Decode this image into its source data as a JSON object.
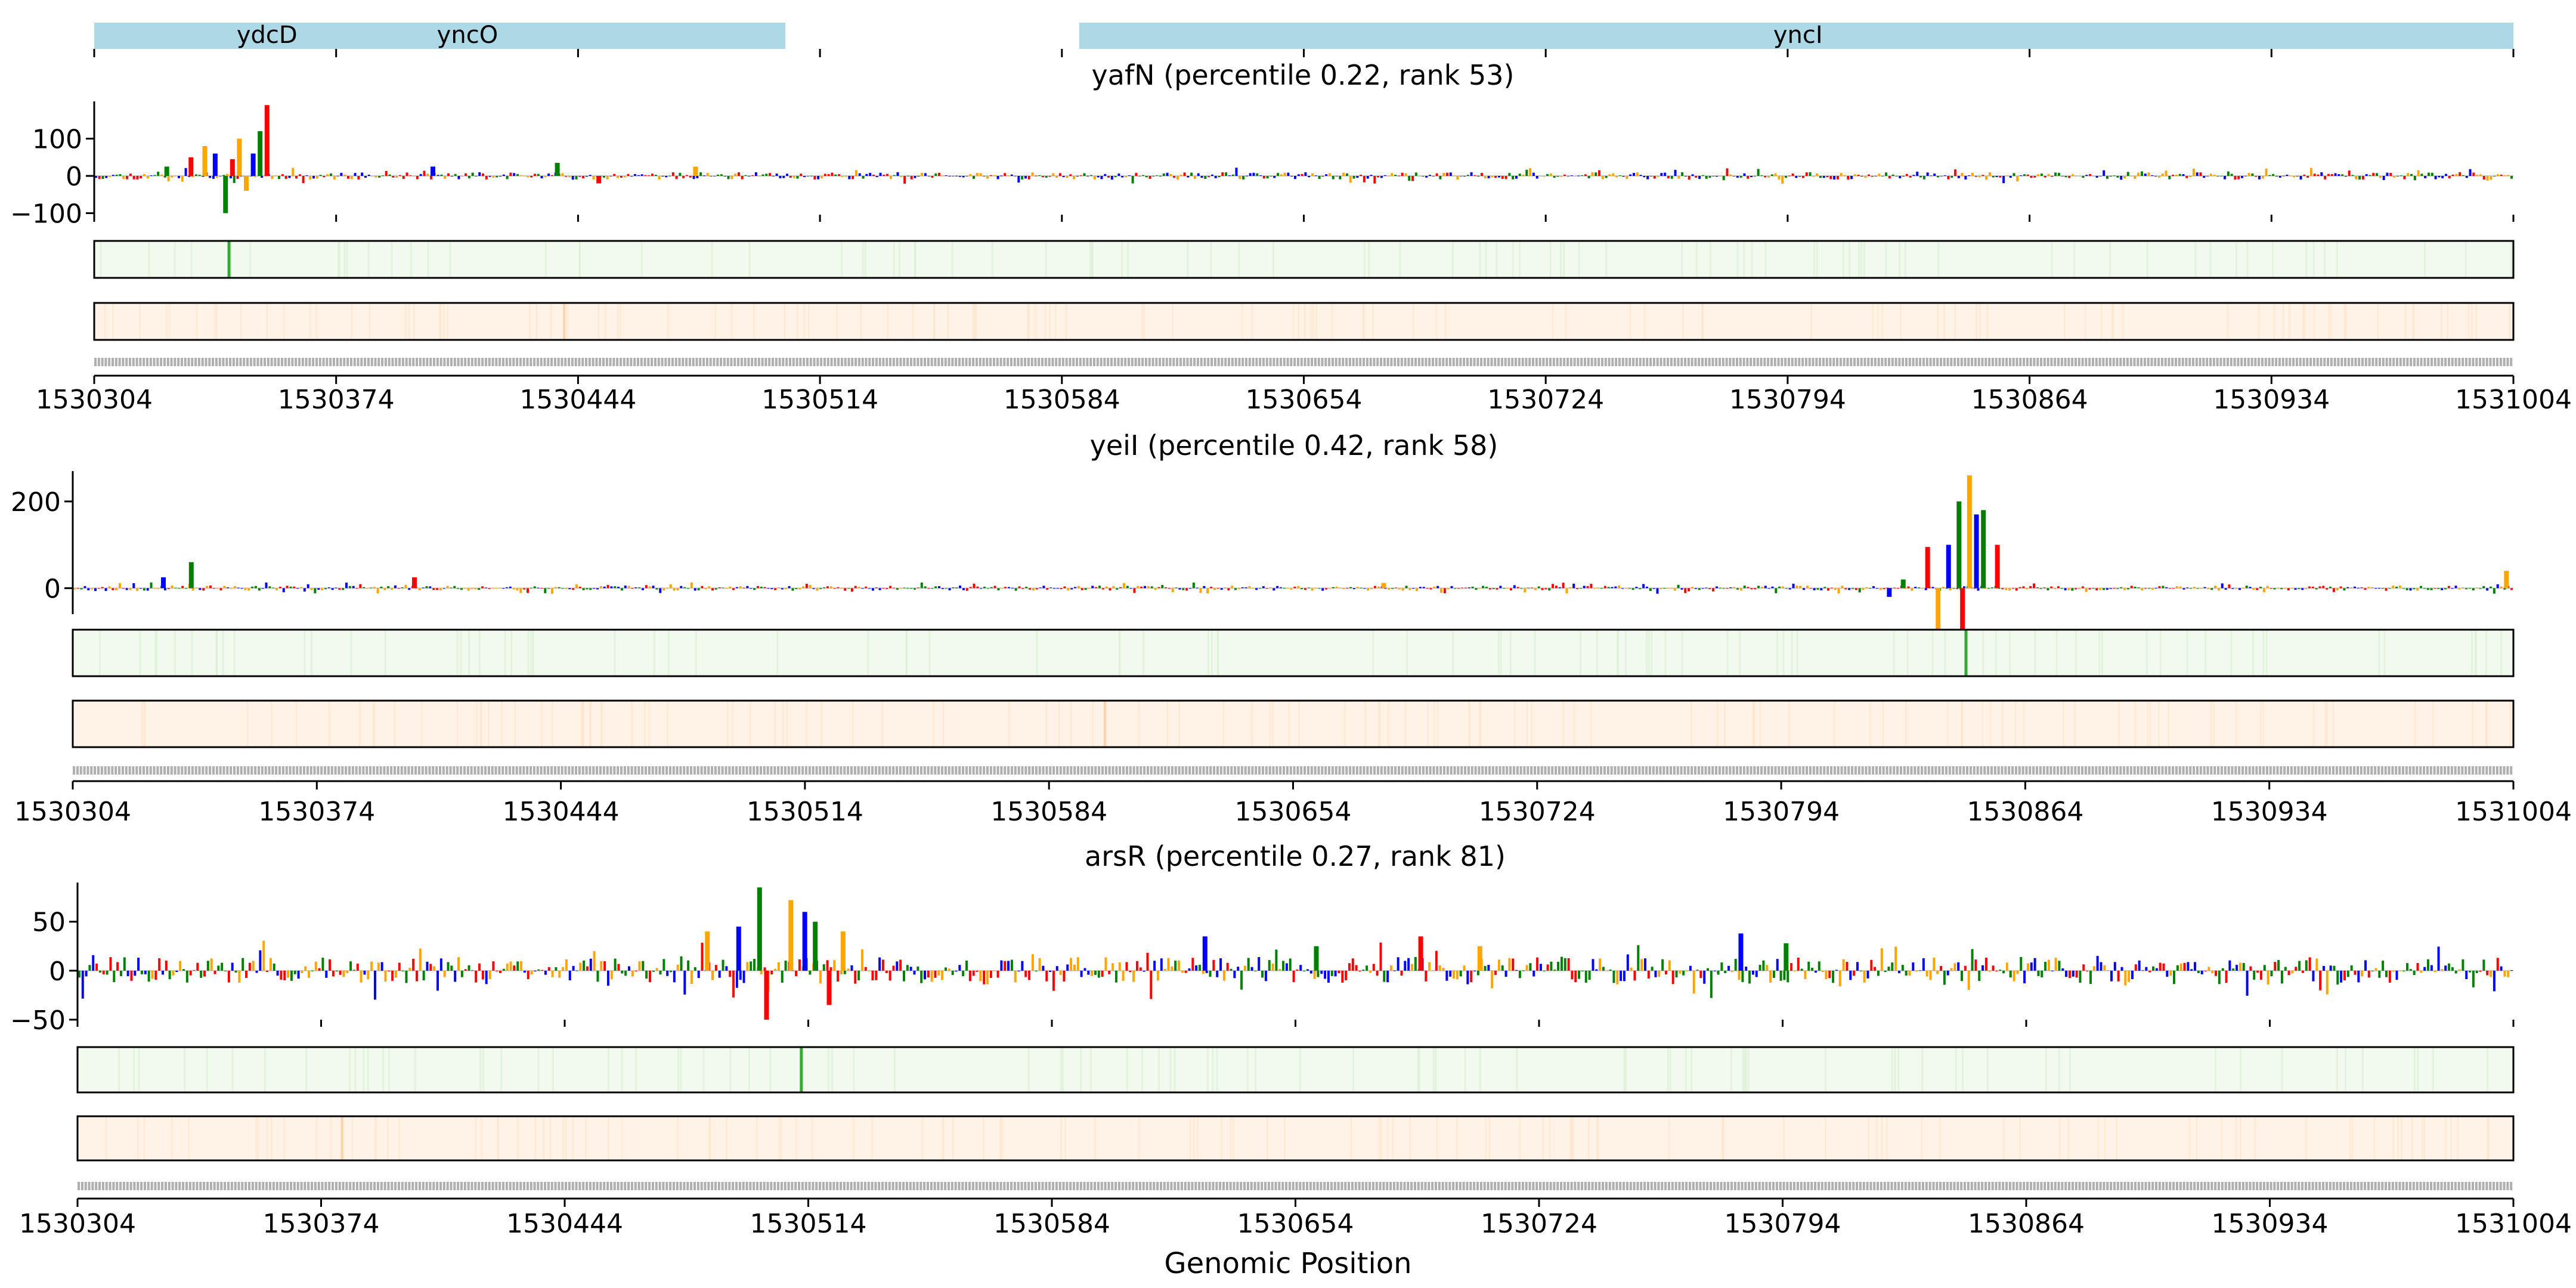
{
  "figure": {
    "xlabel": "Genomic Position",
    "x_tick_labels": [
      "1530304",
      "1530374",
      "1530444",
      "1530514",
      "1530584",
      "1530654",
      "1530724",
      "1530794",
      "1530864",
      "1530934",
      "1531004"
    ]
  },
  "chart_data": [
    {
      "type": "area",
      "name": "gene-annotation-track",
      "genes": [
        {
          "label": "ydcD",
          "x_start": 1530304,
          "x_end": 1530504,
          "color": "#add8e6"
        },
        {
          "label": "yncO",
          "x_start": 1530304,
          "x_end": 1530504,
          "color": "#add8e6"
        },
        {
          "label": "yncI",
          "x_start": 1530589,
          "x_end": 1531004,
          "color": "#add8e6"
        }
      ],
      "gene_label_x": {
        "ydcD": 1530354,
        "yncO": 1530412,
        "yncI": 1530797
      },
      "xlim": [
        1530304,
        1531004
      ]
    },
    {
      "type": "bar",
      "title": "yafN (percentile 0.22, rank 53)",
      "xlim": [
        1530304,
        1531004
      ],
      "ylim": [
        -120,
        200
      ],
      "y_ticks": [
        100,
        0,
        -100
      ],
      "y_tick_labels": [
        "100",
        "0",
        "−100"
      ],
      "peaks": [
        {
          "x": 1530325,
          "y": 25
        },
        {
          "x": 1530332,
          "y": 50
        },
        {
          "x": 1530336,
          "y": 80
        },
        {
          "x": 1530339,
          "y": 60
        },
        {
          "x": 1530342,
          "y": -100
        },
        {
          "x": 1530344,
          "y": 45
        },
        {
          "x": 1530346,
          "y": 100
        },
        {
          "x": 1530350,
          "y": 60
        },
        {
          "x": 1530352,
          "y": 120
        },
        {
          "x": 1530354,
          "y": 190
        },
        {
          "x": 1530348,
          "y": -40
        },
        {
          "x": 1530402,
          "y": 25
        },
        {
          "x": 1530438,
          "y": 35
        },
        {
          "x": 1530450,
          "y": -20
        },
        {
          "x": 1530478,
          "y": 25
        }
      ],
      "noise_amplitude": 10,
      "heatmap_green_peak_x": 1530343,
      "heatmap_orange_peak_x": 1530440
    },
    {
      "type": "bar",
      "title": "yeiI (percentile 0.42, rank 58)",
      "xlim": [
        1530304,
        1531004
      ],
      "ylim": [
        -60,
        270
      ],
      "y_ticks": [
        200,
        0
      ],
      "y_tick_labels": [
        "200",
        "0"
      ],
      "peaks": [
        {
          "x": 1530330,
          "y": 25
        },
        {
          "x": 1530338,
          "y": 60
        },
        {
          "x": 1530402,
          "y": 25
        },
        {
          "x": 1530680,
          "y": 12
        },
        {
          "x": 1530825,
          "y": -20
        },
        {
          "x": 1530829,
          "y": 20
        },
        {
          "x": 1530836,
          "y": 95
        },
        {
          "x": 1530839,
          "y": -110
        },
        {
          "x": 1530842,
          "y": 100
        },
        {
          "x": 1530845,
          "y": 200
        },
        {
          "x": 1530846,
          "y": -130
        },
        {
          "x": 1530848,
          "y": 260
        },
        {
          "x": 1530850,
          "y": 170
        },
        {
          "x": 1530852,
          "y": 180
        },
        {
          "x": 1530856,
          "y": 100
        },
        {
          "x": 1531002,
          "y": 40
        }
      ],
      "noise_amplitude": 6,
      "heatmap_green_peak_x": 1530847,
      "heatmap_orange_peak_x": 1530600
    },
    {
      "type": "bar",
      "title": "arsR (percentile 0.27, rank 81)",
      "xlim": [
        1530304,
        1531004
      ],
      "ylim": [
        -50,
        90
      ],
      "y_ticks": [
        50,
        0,
        -50
      ],
      "y_tick_labels": [
        "50",
        "0",
        "−50"
      ],
      "peaks": [
        {
          "x": 1530485,
          "y": 40
        },
        {
          "x": 1530494,
          "y": 45
        },
        {
          "x": 1530500,
          "y": 85
        },
        {
          "x": 1530502,
          "y": -50
        },
        {
          "x": 1530509,
          "y": 72
        },
        {
          "x": 1530513,
          "y": 60
        },
        {
          "x": 1530516,
          "y": 50
        },
        {
          "x": 1530520,
          "y": -35
        },
        {
          "x": 1530524,
          "y": 40
        },
        {
          "x": 1530628,
          "y": 35
        },
        {
          "x": 1530660,
          "y": 25
        },
        {
          "x": 1530690,
          "y": 35
        },
        {
          "x": 1530707,
          "y": 25
        },
        {
          "x": 1530782,
          "y": 38
        },
        {
          "x": 1530795,
          "y": 28
        }
      ],
      "noise_amplitude": 14,
      "heatmap_green_peak_x": 1530512,
      "heatmap_orange_peak_x": 1530380
    }
  ],
  "colors": {
    "A": "#008000",
    "C": "#0000ff",
    "G": "#ffa500",
    "T": "#ff0000",
    "gene": "#add8e6",
    "green_bg": "#f2f9ef",
    "orange_bg": "#fff3e7",
    "green_peak": "#33aa33",
    "orange_peak": "#f4a460"
  }
}
